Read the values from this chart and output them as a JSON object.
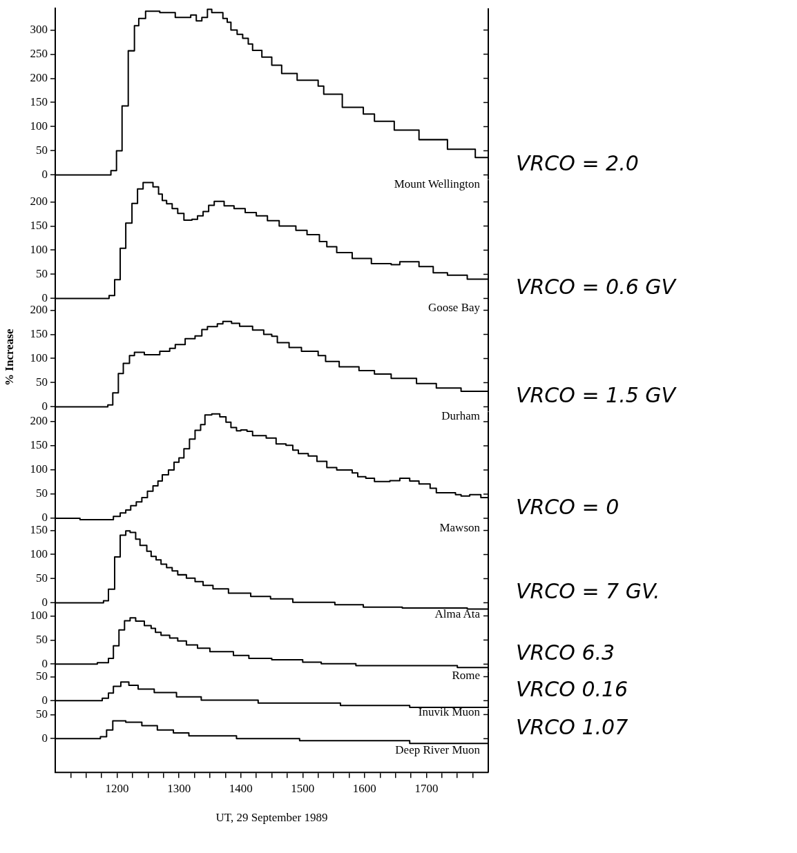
{
  "chart_data": [
    {
      "type": "step",
      "xlim": [
        1100,
        1800
      ],
      "ylim": [
        -10,
        345
      ],
      "yticks": [
        0,
        50,
        100,
        150,
        200,
        250,
        300
      ],
      "tick_labels": "y",
      "annotations": [
        "VRCO = 2.0"
      ],
      "series": [
        {
          "name": "Mount Wellington",
          "color": "#000000",
          "x": [
            1100,
            1190,
            1199,
            1208,
            1218,
            1228,
            1235,
            1246,
            1269,
            1294,
            1319,
            1328,
            1337,
            1346,
            1353,
            1371,
            1378,
            1384,
            1394,
            1403,
            1412,
            1419,
            1434,
            1450,
            1466,
            1491,
            1525,
            1534,
            1564,
            1598,
            1616,
            1648,
            1688,
            1734,
            1779,
            1800
          ],
          "values": [
            0,
            9,
            50,
            143,
            257,
            309,
            324,
            339,
            336,
            326,
            331,
            319,
            326,
            343,
            336,
            324,
            316,
            300,
            291,
            283,
            271,
            258,
            244,
            227,
            210,
            196,
            184,
            167,
            140,
            126,
            111,
            93,
            73,
            53,
            36,
            36
          ]
        }
      ]
    },
    {
      "type": "step",
      "xlim": [
        1100,
        1800
      ],
      "ylim": [
        -10,
        245
      ],
      "yticks": [
        0,
        50,
        100,
        150,
        200
      ],
      "tick_labels": "y",
      "annotations": [
        "VRCO = 0.6 GV"
      ],
      "series": [
        {
          "name": "Goose Bay",
          "color": "#000000",
          "x": [
            1100,
            1187,
            1196,
            1205,
            1214,
            1224,
            1233,
            1242,
            1258,
            1267,
            1273,
            1280,
            1289,
            1298,
            1308,
            1321,
            1330,
            1339,
            1348,
            1357,
            1373,
            1389,
            1407,
            1425,
            1443,
            1462,
            1489,
            1507,
            1527,
            1539,
            1555,
            1580,
            1611,
            1643,
            1657,
            1688,
            1711,
            1734,
            1766,
            1800
          ],
          "values": [
            0,
            6,
            39,
            104,
            156,
            197,
            227,
            240,
            231,
            216,
            203,
            196,
            186,
            176,
            162,
            164,
            171,
            180,
            193,
            201,
            192,
            186,
            178,
            171,
            161,
            150,
            141,
            132,
            118,
            107,
            95,
            83,
            72,
            70,
            76,
            66,
            53,
            48,
            40,
            40
          ]
        }
      ]
    },
    {
      "type": "step",
      "xlim": [
        1100,
        1800
      ],
      "ylim": [
        -10,
        215
      ],
      "yticks": [
        0,
        50,
        100,
        150,
        200
      ],
      "tick_labels": "y",
      "ylabel": "% Increase",
      "annotations": [
        "VRCO = 1.5 GV"
      ],
      "series": [
        {
          "name": "Durham",
          "color": "#000000",
          "x": [
            1100,
            1185,
            1193,
            1202,
            1210,
            1220,
            1228,
            1244,
            1269,
            1285,
            1294,
            1310,
            1326,
            1337,
            1346,
            1362,
            1371,
            1385,
            1398,
            1419,
            1437,
            1450,
            1459,
            1478,
            1498,
            1525,
            1537,
            1559,
            1591,
            1616,
            1643,
            1684,
            1716,
            1756,
            1800
          ],
          "values": [
            0,
            4,
            29,
            69,
            90,
            106,
            113,
            108,
            115,
            121,
            129,
            141,
            147,
            160,
            166,
            172,
            177,
            173,
            167,
            159,
            150,
            146,
            133,
            123,
            115,
            106,
            94,
            83,
            75,
            68,
            59,
            48,
            39,
            32,
            32
          ]
        }
      ]
    },
    {
      "type": "step",
      "xlim": [
        1100,
        1800
      ],
      "ylim": [
        -10,
        220
      ],
      "yticks": [
        0,
        50,
        100,
        150,
        200
      ],
      "tick_labels": "y",
      "annotations": [
        "VRCO = 0"
      ],
      "series": [
        {
          "name": "Mawson",
          "color": "#000000",
          "x": [
            1100,
            1140,
            1194,
            1205,
            1214,
            1222,
            1231,
            1240,
            1249,
            1258,
            1266,
            1273,
            1283,
            1292,
            1300,
            1308,
            1317,
            1326,
            1335,
            1342,
            1353,
            1366,
            1376,
            1384,
            1393,
            1400,
            1410,
            1419,
            1441,
            1457,
            1473,
            1484,
            1493,
            1509,
            1523,
            1539,
            1555,
            1580,
            1589,
            1602,
            1616,
            1641,
            1657,
            1673,
            1688,
            1706,
            1716,
            1747,
            1756,
            1770,
            1788,
            1800
          ],
          "values": [
            0,
            -3,
            4,
            11,
            17,
            26,
            34,
            43,
            56,
            67,
            77,
            90,
            100,
            116,
            125,
            144,
            164,
            182,
            194,
            214,
            216,
            210,
            199,
            188,
            181,
            183,
            180,
            171,
            166,
            154,
            151,
            141,
            134,
            129,
            118,
            105,
            100,
            94,
            86,
            83,
            76,
            78,
            83,
            77,
            71,
            62,
            53,
            49,
            46,
            49,
            43,
            43
          ]
        }
      ]
    },
    {
      "type": "step",
      "xlim": [
        1100,
        1800
      ],
      "ylim": [
        -16,
        165
      ],
      "yticks": [
        0,
        50,
        100,
        150
      ],
      "tick_labels": "y",
      "annotations": [
        "VRCO = 7 GV."
      ],
      "series": [
        {
          "name": "Alma Ata",
          "color": "#000000",
          "x": [
            1100,
            1178,
            1186,
            1196,
            1205,
            1214,
            1221,
            1230,
            1237,
            1248,
            1255,
            1263,
            1271,
            1280,
            1289,
            1298,
            1312,
            1326,
            1339,
            1355,
            1380,
            1416,
            1448,
            1484,
            1552,
            1598,
            1661,
            1766,
            1800
          ],
          "values": [
            0,
            4,
            28,
            95,
            140,
            149,
            146,
            132,
            119,
            107,
            96,
            89,
            80,
            73,
            66,
            58,
            51,
            44,
            36,
            29,
            20,
            13,
            8,
            1,
            -4,
            -9,
            -11,
            -13,
            -13
          ]
        }
      ]
    },
    {
      "type": "step",
      "xlim": [
        1100,
        1800
      ],
      "ylim": [
        -14,
        112
      ],
      "yticks": [
        0,
        50,
        100
      ],
      "tick_labels": "y",
      "annotations": [
        "VRCO 6.3"
      ],
      "series": [
        {
          "name": "Rome",
          "color": "#000000",
          "x": [
            1100,
            1168,
            1186,
            1194,
            1203,
            1212,
            1221,
            1230,
            1244,
            1255,
            1262,
            1271,
            1285,
            1298,
            1312,
            1330,
            1350,
            1388,
            1413,
            1450,
            1500,
            1530,
            1586,
            1750,
            1800
          ],
          "values": [
            0,
            3,
            12,
            38,
            71,
            90,
            96,
            89,
            80,
            74,
            66,
            60,
            54,
            48,
            40,
            33,
            26,
            18,
            12,
            9,
            4,
            1,
            -3,
            -7,
            -7
          ]
        }
      ]
    },
    {
      "type": "step",
      "xlim": [
        1100,
        1800
      ],
      "ylim": [
        -16,
        62
      ],
      "yticks": [
        0,
        50
      ],
      "tick_labels": "y",
      "annotations": [
        "VRCO 0.16"
      ],
      "series": [
        {
          "name": "Inuvik Muon",
          "color": "#000000",
          "x": [
            1100,
            1176,
            1186,
            1194,
            1206,
            1219,
            1234,
            1260,
            1296,
            1336,
            1428,
            1561,
            1673,
            1800
          ],
          "values": [
            0,
            5,
            16,
            30,
            39,
            32,
            24,
            17,
            8,
            1,
            -5,
            -10,
            -14,
            -14
          ]
        }
      ]
    },
    {
      "type": "step",
      "xlim": [
        1100,
        1800
      ],
      "ylim": [
        -70,
        62
      ],
      "yticks": [
        0,
        50
      ],
      "xlabel": "UT, 29 September 1989",
      "annotations": [
        "VRCO 1.07"
      ],
      "xticks": [
        {
          "value": 1125,
          "label": null
        },
        {
          "value": 1150,
          "label": null
        },
        {
          "value": 1175,
          "label": null
        },
        1200,
        {
          "value": 1225,
          "label": null
        },
        {
          "value": 1250,
          "label": null
        },
        {
          "value": 1275,
          "label": null
        },
        1300,
        {
          "value": 1325,
          "label": null
        },
        {
          "value": 1350,
          "label": null
        },
        {
          "value": 1375,
          "label": null
        },
        1400,
        {
          "value": 1425,
          "label": null
        },
        {
          "value": 1450,
          "label": null
        },
        {
          "value": 1475,
          "label": null
        },
        1500,
        {
          "value": 1525,
          "label": null
        },
        {
          "value": 1550,
          "label": null
        },
        {
          "value": 1575,
          "label": null
        },
        1600,
        {
          "value": 1625,
          "label": null
        },
        {
          "value": 1650,
          "label": null
        },
        {
          "value": 1675,
          "label": null
        },
        1700,
        {
          "value": 1725,
          "label": null
        },
        {
          "value": 1750,
          "label": null
        },
        {
          "value": 1775,
          "label": null
        }
      ],
      "series": [
        {
          "name": "Deep River Muon",
          "color": "#000000",
          "x": [
            1100,
            1173,
            1183,
            1193,
            1214,
            1240,
            1265,
            1291,
            1316,
            1393,
            1495,
            1673,
            1800
          ],
          "values": [
            0,
            4,
            18,
            37,
            34,
            27,
            18,
            12,
            6,
            0,
            -4,
            -10,
            -10
          ]
        }
      ]
    }
  ]
}
